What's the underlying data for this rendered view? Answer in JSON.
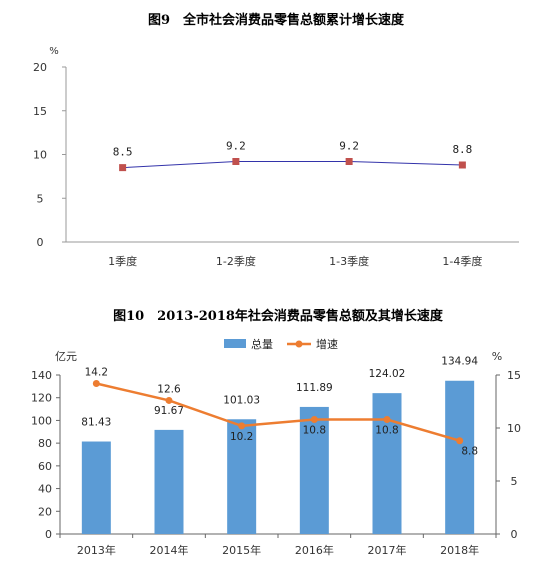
{
  "chart_data": [
    {
      "type": "line",
      "title": "图9　全市社会消费品零售总额累计增长速度",
      "ylabel": "%",
      "ylim": [
        0,
        20
      ],
      "yticks": [
        0,
        5,
        10,
        15,
        20
      ],
      "categories": [
        "1季度",
        "1-2季度",
        "1-3季度",
        "1-4季度"
      ],
      "values": [
        8.5,
        9.2,
        9.2,
        8.8
      ],
      "data_labels": [
        "8.5",
        "9.2",
        "9.2",
        "8.8"
      ],
      "grid": false,
      "line_color": "#3333aa",
      "marker_color": "#c0504d"
    },
    {
      "type": "bar",
      "title": "图10　2013-2018年社会消费品零售总额及其增长速度",
      "ylabel_left": "亿元",
      "ylabel_right": "%",
      "ylim_left": [
        0,
        140
      ],
      "yticks_left": [
        0,
        20,
        40,
        60,
        80,
        100,
        120,
        140
      ],
      "ylim_right": [
        0,
        15
      ],
      "yticks_right": [
        0,
        5,
        10,
        15
      ],
      "categories": [
        "2013年",
        "2014年",
        "2015年",
        "2016年",
        "2017年",
        "2018年"
      ],
      "series": [
        {
          "name": "总量",
          "type": "bar",
          "axis": "left",
          "color": "#5b9bd5",
          "values": [
            81.43,
            91.67,
            101.03,
            111.89,
            124.02,
            134.94
          ],
          "labels": [
            "81.43",
            "91.67",
            "101.03",
            "111.89",
            "124.02",
            "134.94"
          ]
        },
        {
          "name": "增速",
          "type": "line",
          "axis": "right",
          "color": "#ed7d31",
          "values": [
            14.2,
            12.6,
            10.2,
            10.8,
            10.8,
            8.8
          ],
          "labels": [
            "14.2",
            "12.6",
            "10.2",
            "10.8",
            "10.8",
            "8.8"
          ]
        }
      ],
      "legend": "top-center",
      "grid": false
    }
  ]
}
